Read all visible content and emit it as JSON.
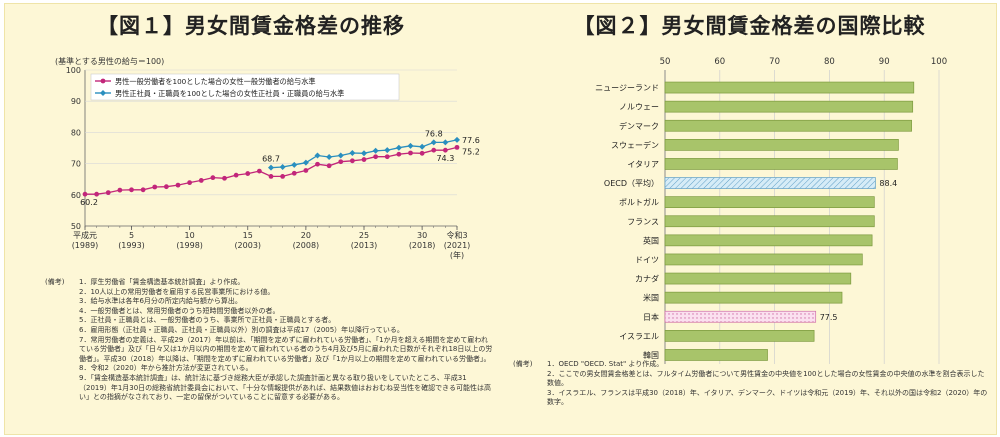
{
  "charts": [
    {
      "title": "【図１】男女間賃金格差の推移",
      "unit_note": "(基準とする男性の給与＝100)",
      "notes_label": "(備考)",
      "notes": [
        "1．厚生労働省「賃金構造基本統計調査」より作成。",
        "2．10人以上の常用労働者を雇用する民営事業所における値。",
        "3．給与水準は各年6月分の所定内給与額から算出。",
        "4．一般労働者とは、常用労働者のうち短時間労働者以外の者。",
        "5．正社員・正職員とは、一般労働者のうち、事業所で正社員・正職員とする者。",
        "6．雇用形態（正社員・正職員、正社員・正職員以外）別の調査は平成17（2005）年以降行っている。",
        "7．常用労働者の定義は、平成29（2017）年以前は、「期間を定めずに雇われている労働者」、「1か月を超える期間を定めて雇われている労働者」及び「日々又は1か月以内の期間を定めて雇われている者のうち4月及び5月に雇われた日数がそれぞれ18日以上の労働者」。平成30（2018）年以降は、「期間を定めずに雇われている労働者」及び「1か月以上の期間を定めて雇われている労働者」。",
        "8．令和2（2020）年から推計方法が変更されている。",
        "9．「賃金構造基本統計調査」は、統計法に基づき総務大臣が承認した調査計画と異なる取り扱いをしていたところ、平成31（2019）年1月30日の総務省統計委員会において、「十分な情報提供があれば、結果数値はおおむね妥当性を確認できる可能性は高い」との指摘がなされており、一定の留保がついていることに留意する必要がある。"
      ],
      "chart_data": {
        "type": "line",
        "ylim": [
          50,
          100
        ],
        "yticks": [
          "50",
          "60",
          "70",
          "80",
          "90",
          "100"
        ],
        "x_start": 1989,
        "x_end": 2021,
        "xticks": [
          {
            "year": 1989,
            "label1": "平成元",
            "label2": "(1989)"
          },
          {
            "year": 1993,
            "label1": "5",
            "label2": "(1993)"
          },
          {
            "year": 1998,
            "label1": "10",
            "label2": "(1998)"
          },
          {
            "year": 2003,
            "label1": "15",
            "label2": "(2003)"
          },
          {
            "year": 2008,
            "label1": "20",
            "label2": "(2008)"
          },
          {
            "year": 2013,
            "label1": "25",
            "label2": "(2013)"
          },
          {
            "year": 2018,
            "label1": "30",
            "label2": "(2018)"
          },
          {
            "year": 2021,
            "label1": "令和3",
            "label2": "(2021)"
          }
        ],
        "x_unit": "(年)",
        "series": [
          {
            "name": "男性一般労働者を100とした場合の女性一般労働者の給与水準",
            "color": "#c2267a",
            "marker": "circle",
            "x": [
              1989,
              1990,
              1991,
              1992,
              1993,
              1994,
              1995,
              1996,
              1997,
              1998,
              1999,
              2000,
              2001,
              2002,
              2003,
              2004,
              2005,
              2006,
              2007,
              2008,
              2009,
              2010,
              2011,
              2012,
              2013,
              2014,
              2015,
              2016,
              2017,
              2018,
              2019,
              2020,
              2021
            ],
            "y": [
              60.2,
              60.2,
              60.7,
              61.5,
              61.6,
              61.6,
              62.5,
              62.6,
              63.1,
              63.9,
              64.6,
              65.5,
              65.3,
              66.3,
              66.8,
              67.6,
              65.9,
              65.9,
              66.9,
              67.8,
              69.8,
              69.3,
              70.6,
              70.9,
              71.3,
              72.2,
              72.2,
              73.0,
              73.4,
              73.3,
              74.3,
              74.3,
              75.2
            ]
          },
          {
            "name": "男性正社員・正職員を100とした場合の女性正社員・正職員の給与水準",
            "color": "#2a8fbf",
            "marker": "diamond",
            "x": [
              2005,
              2006,
              2007,
              2008,
              2009,
              2010,
              2011,
              2012,
              2013,
              2014,
              2015,
              2016,
              2017,
              2018,
              2019,
              2020,
              2021
            ],
            "y": [
              68.7,
              68.9,
              69.6,
              70.3,
              72.6,
              72.1,
              72.6,
              73.4,
              73.3,
              74.1,
              74.3,
              75.1,
              75.7,
              75.4,
              76.8,
              76.8,
              77.6
            ]
          }
        ],
        "annotations": [
          {
            "series": 0,
            "index": 0,
            "text": "60.2",
            "pos": "below"
          },
          {
            "series": 1,
            "index": 0,
            "text": "68.7",
            "pos": "above"
          },
          {
            "series": 1,
            "index": 14,
            "text": "76.8",
            "pos": "above"
          },
          {
            "series": 0,
            "index": 31,
            "text": "74.3",
            "pos": "below"
          },
          {
            "series": 1,
            "index": 16,
            "text": "77.6",
            "pos": "right"
          },
          {
            "series": 0,
            "index": 32,
            "text": "75.2",
            "pos": "right-low"
          }
        ]
      }
    },
    {
      "title": "【図２】男女間賃金格差の国際比較",
      "notes_label": "(備考)",
      "notes": [
        "1．OECD \"OECD. Stat\" より作成。",
        "2．ここでの男女間賃金格差とは、フルタイム労働者について男性賃金の中央値を100とした場合の女性賃金の中央値の水準を割合表示した数値。",
        "3．イスラエル、フランスは平成30（2018）年、イタリア、デンマーク、ドイツは令和元（2019）年、それ以外の国は令和2（2020）年の数字。"
      ],
      "chart_data": {
        "type": "bar",
        "orientation": "horizontal",
        "xlim": [
          50,
          100
        ],
        "xticks": [
          "50",
          "60",
          "70",
          "80",
          "90",
          "100"
        ],
        "categories": [
          "ニュージーランド",
          "ノルウェー",
          "デンマーク",
          "スウェーデン",
          "イタリア",
          "OECD（平均）",
          "ポルトガル",
          "フランス",
          "英国",
          "ドイツ",
          "カナダ",
          "米国",
          "日本",
          "イスラエル",
          "韓国"
        ],
        "values": [
          95.4,
          95.2,
          95.0,
          92.6,
          92.4,
          88.4,
          88.2,
          88.2,
          87.8,
          86.0,
          83.9,
          82.3,
          77.5,
          77.2,
          68.7
        ],
        "styles": [
          "plain",
          "plain",
          "plain",
          "plain",
          "plain",
          "oecd",
          "plain",
          "plain",
          "plain",
          "plain",
          "plain",
          "plain",
          "japan",
          "plain",
          "plain"
        ],
        "colors": {
          "plain": "#a8c46a",
          "plain_stroke": "#7c9a3e",
          "oecd": "#d6ecf7",
          "oecd_stroke": "#5f9fc6",
          "japan": "#fbe0ef",
          "japan_stroke": "#cf6ea6"
        },
        "value_labels": [
          {
            "index": 5,
            "text": "88.4"
          },
          {
            "index": 12,
            "text": "77.5"
          }
        ]
      }
    }
  ]
}
